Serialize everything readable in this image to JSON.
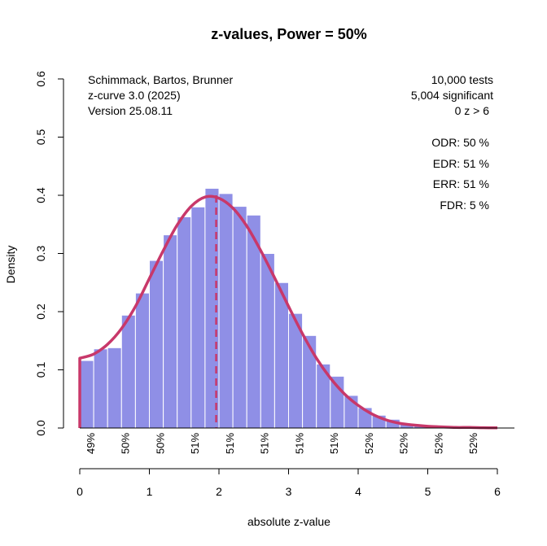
{
  "chart_data": {
    "type": "bar",
    "title": "z-values, Power = 50%",
    "xlabel": "absolute z-value",
    "ylabel": "Density",
    "xlim": [
      0,
      6
    ],
    "ylim": [
      0,
      0.6
    ],
    "x_ticks": [
      "0",
      "1",
      "2",
      "3",
      "4",
      "5",
      "6"
    ],
    "y_ticks": [
      "0.0",
      "0.1",
      "0.2",
      "0.3",
      "0.4",
      "0.5",
      "0.6"
    ],
    "bin_width": 0.2,
    "bin_starts": [
      0.0,
      0.2,
      0.4,
      0.6,
      0.8,
      1.0,
      1.2,
      1.4,
      1.6,
      1.8,
      2.0,
      2.2,
      2.4,
      2.6,
      2.8,
      3.0,
      3.2,
      3.4,
      3.6,
      3.8,
      4.0,
      4.2,
      4.4,
      4.6,
      4.8,
      5.0,
      5.2,
      5.4,
      5.6,
      5.8
    ],
    "density": [
      0.116,
      0.136,
      0.138,
      0.194,
      0.232,
      0.288,
      0.332,
      0.363,
      0.38,
      0.412,
      0.403,
      0.381,
      0.366,
      0.3,
      0.25,
      0.197,
      0.159,
      0.11,
      0.089,
      0.056,
      0.035,
      0.022,
      0.015,
      0.008,
      0.005,
      0.003,
      0.002,
      0.001,
      0.001,
      0.001
    ],
    "curve": {
      "x": [
        0.0,
        0.2,
        0.4,
        0.6,
        0.8,
        1.0,
        1.2,
        1.4,
        1.6,
        1.8,
        2.0,
        2.2,
        2.4,
        2.6,
        2.8,
        3.0,
        3.2,
        3.4,
        3.6,
        3.8,
        4.0,
        4.2,
        4.4,
        4.6,
        4.8,
        5.0,
        5.2,
        5.4,
        5.6,
        5.8,
        6.0
      ],
      "y": [
        0.12,
        0.127,
        0.144,
        0.171,
        0.209,
        0.257,
        0.305,
        0.349,
        0.381,
        0.397,
        0.395,
        0.378,
        0.347,
        0.305,
        0.258,
        0.209,
        0.162,
        0.12,
        0.086,
        0.059,
        0.039,
        0.024,
        0.014,
        0.008,
        0.005,
        0.003,
        0.002,
        0.001,
        0.001,
        0.0005,
        0.0003
      ],
      "color": "#c8386a"
    },
    "vline": {
      "x": 1.96,
      "color": "#c8386a"
    },
    "colors": {
      "bar": "#8f8fe6",
      "bar_edge": "#ffffff"
    },
    "power_labels": {
      "x": [
        0.15,
        0.65,
        1.15,
        1.65,
        2.15,
        2.65,
        3.15,
        3.65,
        4.15,
        4.65,
        5.15,
        5.65
      ],
      "labels": [
        "49%",
        "50%",
        "50%",
        "51%",
        "51%",
        "51%",
        "51%",
        "51%",
        "52%",
        "52%",
        "52%",
        "52%"
      ]
    },
    "info_left": [
      "Schimmack, Bartos, Brunner",
      "z-curve 3.0 (2025)",
      "Version 25.08.11"
    ],
    "info_right": [
      "10,000 tests",
      "5,004 significant",
      "0 z > 6"
    ],
    "stats": [
      "ODR:  50 %",
      "EDR:  51 %",
      "ERR:  51 %",
      "FDR:   5 %"
    ]
  }
}
